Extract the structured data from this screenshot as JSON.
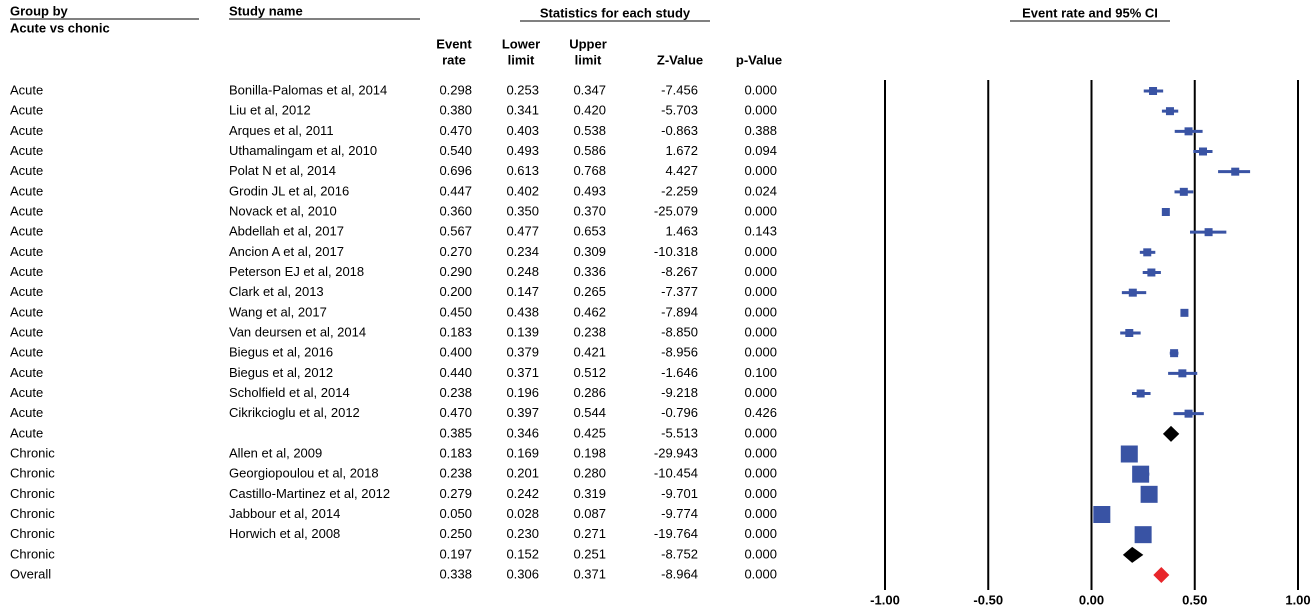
{
  "chart_data": {
    "type": "forest",
    "headers": {
      "group_by": "Group by",
      "group_sub": "Acute vs chonic",
      "study": "Study name",
      "stats": "Statistics for each study",
      "plot": "Event rate and 95% CI",
      "columns": [
        [
          "Event",
          "rate"
        ],
        [
          "Lower",
          "limit"
        ],
        [
          "Upper",
          "limit"
        ],
        [
          "Z-Value"
        ],
        [
          "p-Value"
        ]
      ]
    },
    "rows": [
      [
        "Acute",
        "Bonilla-Palomas et al, 2014",
        "0.298",
        "0.253",
        "0.347",
        "-7.456",
        "0.000"
      ],
      [
        "Acute",
        "Liu et al, 2012",
        "0.380",
        "0.341",
        "0.420",
        "-5.703",
        "0.000"
      ],
      [
        "Acute",
        "Arques et al, 2011",
        "0.470",
        "0.403",
        "0.538",
        "-0.863",
        "0.388"
      ],
      [
        "Acute",
        "Uthamalingam et al, 2010",
        "0.540",
        "0.493",
        "0.586",
        "1.672",
        "0.094"
      ],
      [
        "Acute",
        "Polat N et al, 2014",
        "0.696",
        "0.613",
        "0.768",
        "4.427",
        "0.000"
      ],
      [
        "Acute",
        "Grodin JL et al, 2016",
        "0.447",
        "0.402",
        "0.493",
        "-2.259",
        "0.024"
      ],
      [
        "Acute",
        "Novack et al, 2010",
        "0.360",
        "0.350",
        "0.370",
        "-25.079",
        "0.000"
      ],
      [
        "Acute",
        "Abdellah et al, 2017",
        "0.567",
        "0.477",
        "0.653",
        "1.463",
        "0.143"
      ],
      [
        "Acute",
        "Ancion A et al, 2017",
        "0.270",
        "0.234",
        "0.309",
        "-10.318",
        "0.000"
      ],
      [
        "Acute",
        "Peterson EJ et al, 2018",
        "0.290",
        "0.248",
        "0.336",
        "-8.267",
        "0.000"
      ],
      [
        "Acute",
        "Clark et al, 2013",
        "0.200",
        "0.147",
        "0.265",
        "-7.377",
        "0.000"
      ],
      [
        "Acute",
        "Wang et al, 2017",
        "0.450",
        "0.438",
        "0.462",
        "-7.894",
        "0.000"
      ],
      [
        "Acute",
        "Van deursen et al, 2014",
        "0.183",
        "0.139",
        "0.238",
        "-8.850",
        "0.000"
      ],
      [
        "Acute",
        "Biegus et al, 2016",
        "0.400",
        "0.379",
        "0.421",
        "-8.956",
        "0.000"
      ],
      [
        "Acute",
        "Biegus et al, 2012",
        "0.440",
        "0.371",
        "0.512",
        "-1.646",
        "0.100"
      ],
      [
        "Acute",
        "Scholfield et al, 2014",
        "0.238",
        "0.196",
        "0.286",
        "-9.218",
        "0.000"
      ],
      [
        "Acute",
        "Cikrikcioglu et al, 2012",
        "0.470",
        "0.397",
        "0.544",
        "-0.796",
        "0.426"
      ],
      [
        "Acute",
        null,
        "0.385",
        "0.346",
        "0.425",
        "-5.513",
        "0.000"
      ],
      [
        "Chronic",
        "Allen et al, 2009",
        "0.183",
        "0.169",
        "0.198",
        "-29.943",
        "0.000"
      ],
      [
        "Chronic",
        "Georgiopoulou et al, 2018",
        "0.238",
        "0.201",
        "0.280",
        "-10.454",
        "0.000"
      ],
      [
        "Chronic",
        "Castillo-Martinez et al, 2012",
        "0.279",
        "0.242",
        "0.319",
        "-9.701",
        "0.000"
      ],
      [
        "Chronic",
        "Jabbour et al, 2014",
        "0.050",
        "0.028",
        "0.087",
        "-9.774",
        "0.000"
      ],
      [
        "Chronic",
        "Horwich et al, 2008",
        "0.250",
        "0.230",
        "0.271",
        "-19.764",
        "0.000"
      ],
      [
        "Chronic",
        null,
        "0.197",
        "0.152",
        "0.251",
        "-8.752",
        "0.000"
      ],
      [
        "Overall",
        null,
        "0.338",
        "0.306",
        "0.371",
        "-8.964",
        "0.000"
      ]
    ],
    "xlim": [
      -1,
      1
    ],
    "xticks": [
      {
        "value": -1,
        "label": "-1.00"
      },
      {
        "value": -0.5,
        "label": "-0.50"
      },
      {
        "value": 0,
        "label": "0.00"
      },
      {
        "value": 0.5,
        "label": "0.50"
      },
      {
        "value": 1,
        "label": "1.00"
      }
    ],
    "colors": {
      "study": "#3953a4",
      "subgroup": "#000000",
      "overall": "#e8262b"
    }
  }
}
